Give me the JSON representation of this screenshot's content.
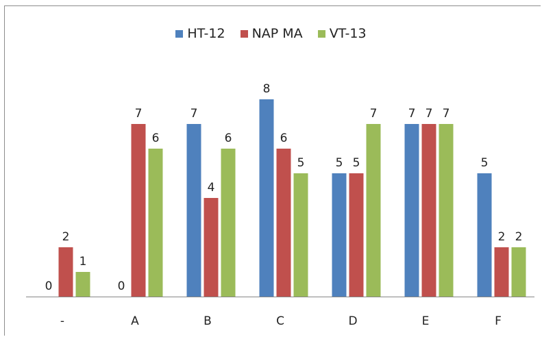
{
  "chart_data": {
    "type": "bar",
    "title": "",
    "xlabel": "",
    "ylabel": "",
    "categories": [
      "-",
      "A",
      "B",
      "C",
      "D",
      "E",
      "F"
    ],
    "series": [
      {
        "name": "HT-12",
        "values": [
          0,
          0,
          7,
          8,
          5,
          7,
          5
        ],
        "color": "#4f81bd"
      },
      {
        "name": "NAP MA",
        "values": [
          2,
          7,
          4,
          6,
          5,
          7,
          2
        ],
        "color": "#c0504d"
      },
      {
        "name": "VT-13",
        "values": [
          1,
          6,
          6,
          5,
          7,
          7,
          2
        ],
        "color": "#9bbb59"
      }
    ],
    "ylim": [
      0,
      8
    ],
    "grid": false,
    "legend": "top",
    "data_labels": true
  }
}
